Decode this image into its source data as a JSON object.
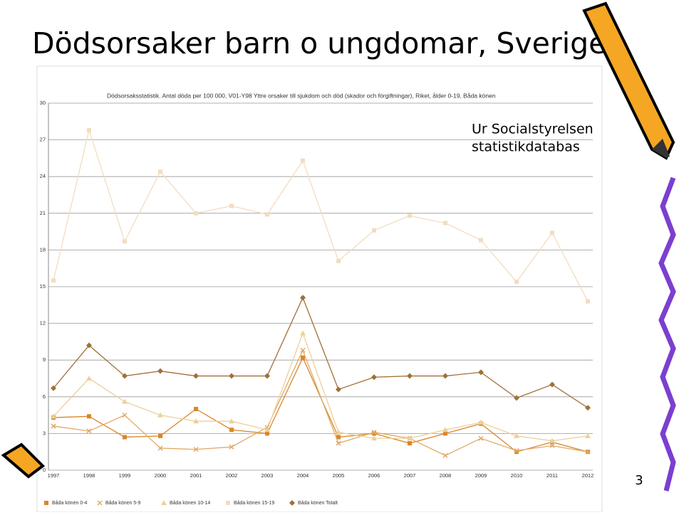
{
  "slide": {
    "title": "Dödsorsaker barn o ungdomar, Sverige",
    "note_lines": [
      "Ur Socialstyrelsen",
      "statistikdatabas"
    ],
    "page_number": "3"
  },
  "chart_data": {
    "type": "line",
    "title": "Dödsorsaksstatistik. Antal döda per 100 000, V01-Y98 Yttre orsaker till sjukdom och död (skador och förgiftningar), Riket, ålder 0-19, Båda könen",
    "categories": [
      "1997",
      "1998",
      "1999",
      "2000",
      "2001",
      "2002",
      "2003",
      "2004",
      "2005",
      "2006",
      "2007",
      "2008",
      "2009",
      "2010",
      "2011",
      "2012"
    ],
    "ylim": [
      0,
      30
    ],
    "yticks": [
      0,
      3,
      6,
      9,
      12,
      15,
      18,
      21,
      24,
      27,
      30
    ],
    "grid": true,
    "legend": "bottom",
    "series": [
      {
        "name": "Båda könen 0-4",
        "color": "#d9862a",
        "marker": "square",
        "values": [
          4.3,
          4.4,
          2.7,
          2.8,
          5.0,
          3.3,
          3.0,
          9.2,
          2.7,
          3.0,
          2.2,
          3.0,
          3.8,
          1.5,
          2.3,
          1.5
        ]
      },
      {
        "name": "Båda könen 5-9",
        "color": "#e0aa68",
        "marker": "x",
        "values": [
          3.6,
          3.2,
          4.5,
          1.8,
          1.7,
          1.9,
          3.5,
          9.8,
          2.2,
          3.1,
          2.6,
          1.2,
          2.6,
          1.6,
          2.0,
          1.5
        ]
      },
      {
        "name": "Båda könen 10-14",
        "color": "#ecd09a",
        "marker": "triangle",
        "values": [
          4.4,
          7.5,
          5.6,
          4.5,
          4.0,
          4.0,
          3.3,
          11.2,
          3.1,
          2.6,
          2.6,
          3.3,
          3.9,
          2.8,
          2.4,
          2.8
        ]
      },
      {
        "name": "Båda könen 15-19",
        "color": "#f3dcc0",
        "marker": "square",
        "values": [
          15.5,
          27.8,
          18.7,
          24.4,
          21.0,
          21.6,
          20.9,
          25.3,
          17.1,
          19.6,
          20.8,
          20.2,
          18.8,
          15.4,
          19.4,
          13.8
        ]
      },
      {
        "name": "Båda könen Totalt",
        "color": "#a0703a",
        "marker": "diamond",
        "values": [
          6.7,
          10.2,
          7.7,
          8.1,
          7.7,
          7.7,
          7.7,
          14.1,
          6.6,
          7.6,
          7.7,
          7.7,
          8.0,
          5.9,
          7.0,
          5.1
        ]
      }
    ]
  }
}
